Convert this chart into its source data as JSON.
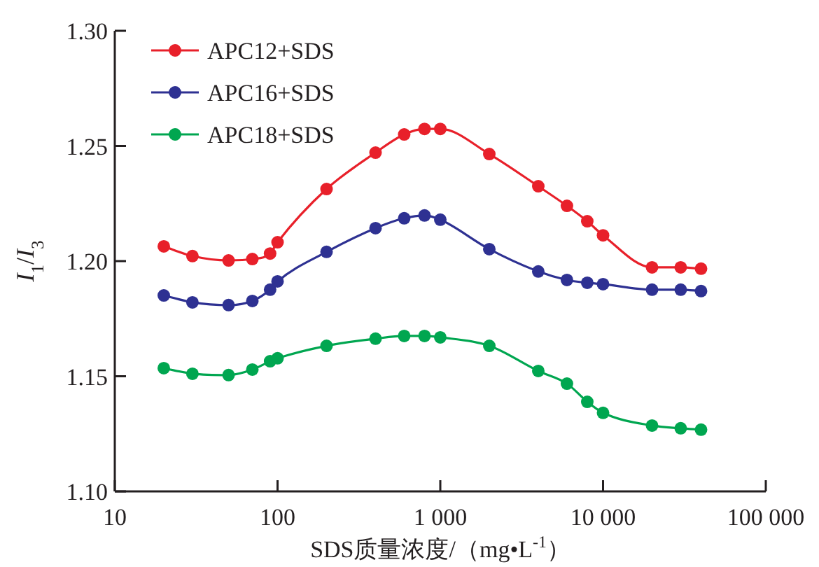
{
  "chart_data": {
    "type": "line",
    "xlabel": "SDS质量浓度/（mg•L$^{-1}$）",
    "ylabel": "*I*$_{1}$/*I*$_{3}$",
    "log": "x",
    "grid": false,
    "legend": "top left",
    "marker": "circle",
    "line_style": "solid",
    "xlim": [
      10,
      100000
    ],
    "ylim": [
      1.1,
      1.3
    ],
    "xticks": [
      10,
      100,
      {
        "value": 1000,
        "label": "1 000"
      },
      {
        "value": 10000,
        "label": "10 000"
      },
      {
        "value": 100000,
        "label": "100 000"
      }
    ],
    "yticks": [
      {
        "value": 1.1,
        "label": "1.10"
      },
      {
        "value": 1.15,
        "label": "1.15"
      },
      {
        "value": 1.2,
        "label": "1.20"
      },
      {
        "value": 1.25,
        "label": "1.25"
      },
      {
        "value": 1.3,
        "label": "1.30"
      }
    ],
    "x": [
      20,
      30,
      50,
      70,
      90,
      100,
      200,
      400,
      600,
      800,
      1000,
      2000,
      4000,
      6000,
      8000,
      10000,
      20000,
      30000,
      40000
    ],
    "series": [
      {
        "name": "APC12+SDS",
        "color": "#e8202a",
        "values": [
          1.2064,
          1.2022,
          1.2003,
          1.2009,
          1.2033,
          1.2082,
          1.2313,
          1.2471,
          1.255,
          1.2574,
          1.2574,
          1.2465,
          1.2325,
          1.224,
          1.2173,
          1.2112,
          1.1973,
          1.1973,
          1.1967
        ]
      },
      {
        "name": "APC16+SDS",
        "color": "#2e3192",
        "values": [
          1.1851,
          1.1821,
          1.1809,
          1.1827,
          1.1876,
          1.1912,
          1.204,
          1.2143,
          1.2186,
          1.2198,
          1.218,
          1.2052,
          1.1955,
          1.1918,
          1.1906,
          1.19,
          1.1876,
          1.1876,
          1.187
        ]
      },
      {
        "name": "APC18+SDS",
        "color": "#00a650",
        "values": [
          1.1535,
          1.1511,
          1.1505,
          1.1529,
          1.1565,
          1.1578,
          1.1632,
          1.1663,
          1.1675,
          1.1675,
          1.1669,
          1.1632,
          1.1523,
          1.1468,
          1.1389,
          1.1341,
          1.1286,
          1.1274,
          1.1268
        ]
      }
    ]
  }
}
